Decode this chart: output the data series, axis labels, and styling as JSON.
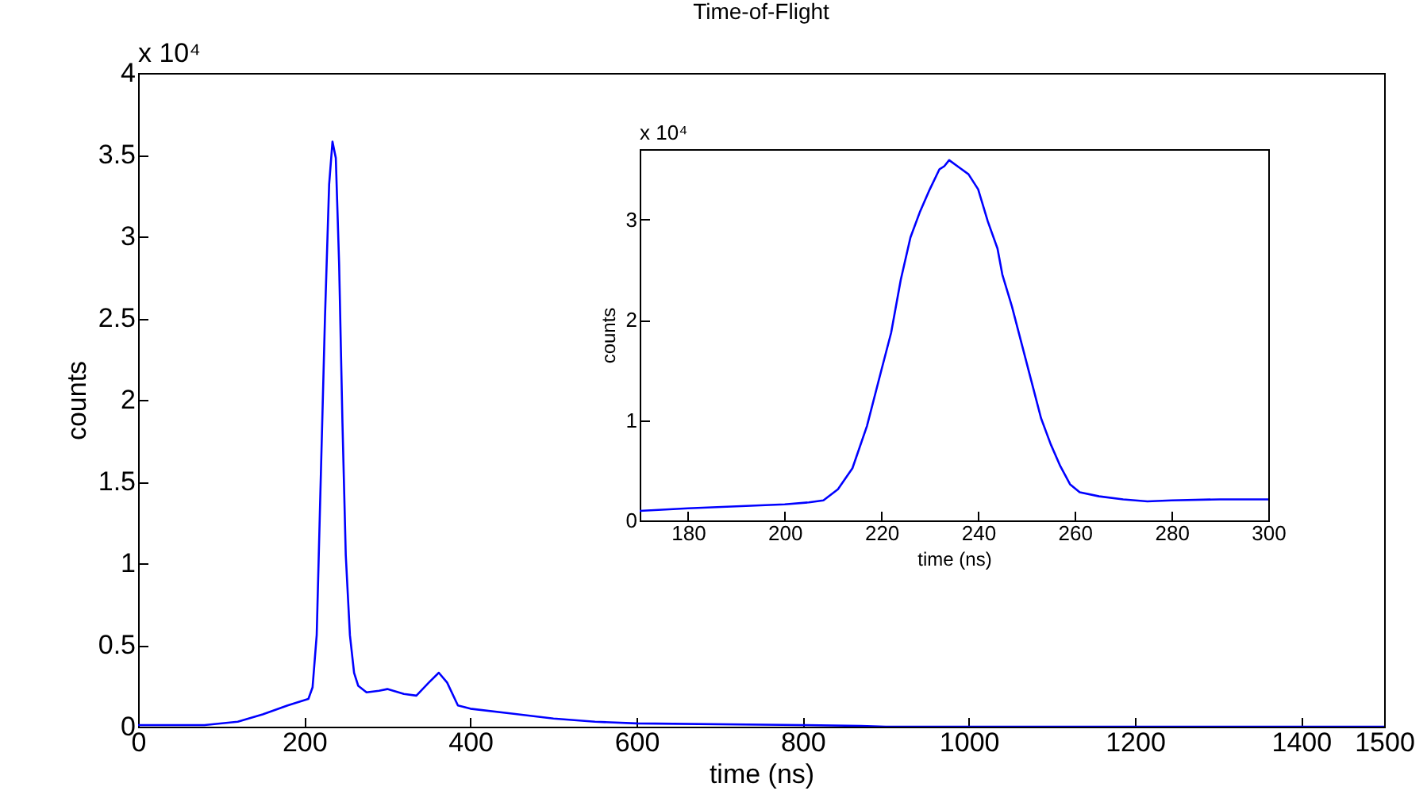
{
  "chart_data": [
    {
      "type": "line",
      "title": "Time-of-Flight",
      "xlabel": "time (ns)",
      "ylabel": "counts",
      "annotations": [
        "x 10⁴"
      ],
      "xlim": [
        0,
        1500
      ],
      "xticks": [
        0,
        200,
        400,
        600,
        800,
        1000,
        1200,
        1400,
        1500
      ],
      "ylim": [
        0,
        4
      ],
      "yticks": [
        0,
        0.5,
        1,
        1.5,
        2,
        2.5,
        3,
        3.5,
        4
      ],
      "series": [
        {
          "color": "#0000ff",
          "x": [
            0,
            80,
            120,
            150,
            180,
            205,
            210,
            215,
            220,
            225,
            230,
            234,
            238,
            242,
            246,
            250,
            255,
            260,
            265,
            275,
            290,
            300,
            320,
            335,
            350,
            362,
            372,
            385,
            400,
            450,
            500,
            550,
            600,
            800,
            870,
            900,
            1500
          ],
          "values": [
            0.01,
            0.01,
            0.03,
            0.075,
            0.13,
            0.17,
            0.24,
            0.56,
            1.54,
            2.51,
            3.32,
            3.58,
            3.48,
            2.83,
            1.86,
            1.05,
            0.56,
            0.33,
            0.25,
            0.21,
            0.22,
            0.23,
            0.2,
            0.19,
            0.27,
            0.33,
            0.27,
            0.13,
            0.11,
            0.08,
            0.05,
            0.03,
            0.02,
            0.01,
            0.005,
            0,
            0
          ]
        }
      ]
    },
    {
      "type": "line",
      "xlabel": "time (ns)",
      "ylabel": "counts",
      "annotations": [
        "x 10⁴"
      ],
      "xlim": [
        170,
        300
      ],
      "xticks": [
        180,
        200,
        220,
        240,
        260,
        280,
        300
      ],
      "ylim": [
        0,
        3.7
      ],
      "yticks": [
        0,
        1,
        2,
        3
      ],
      "series": [
        {
          "color": "#0000ff",
          "x": [
            170,
            180,
            190,
            200,
            205,
            208,
            211,
            214,
            217,
            220,
            222,
            224,
            226,
            228,
            230,
            232,
            233,
            234,
            236,
            238,
            240,
            242,
            244,
            245,
            247,
            249,
            251,
            253,
            255,
            257,
            259,
            261,
            265,
            270,
            275,
            280,
            290,
            300
          ],
          "values": [
            0.095,
            0.12,
            0.14,
            0.16,
            0.18,
            0.2,
            0.31,
            0.52,
            0.94,
            1.5,
            1.87,
            2.4,
            2.82,
            3.08,
            3.3,
            3.5,
            3.53,
            3.59,
            3.52,
            3.45,
            3.3,
            2.98,
            2.71,
            2.45,
            2.13,
            1.76,
            1.39,
            1.02,
            0.76,
            0.54,
            0.36,
            0.28,
            0.24,
            0.21,
            0.19,
            0.2,
            0.21,
            0.21
          ]
        }
      ]
    }
  ]
}
